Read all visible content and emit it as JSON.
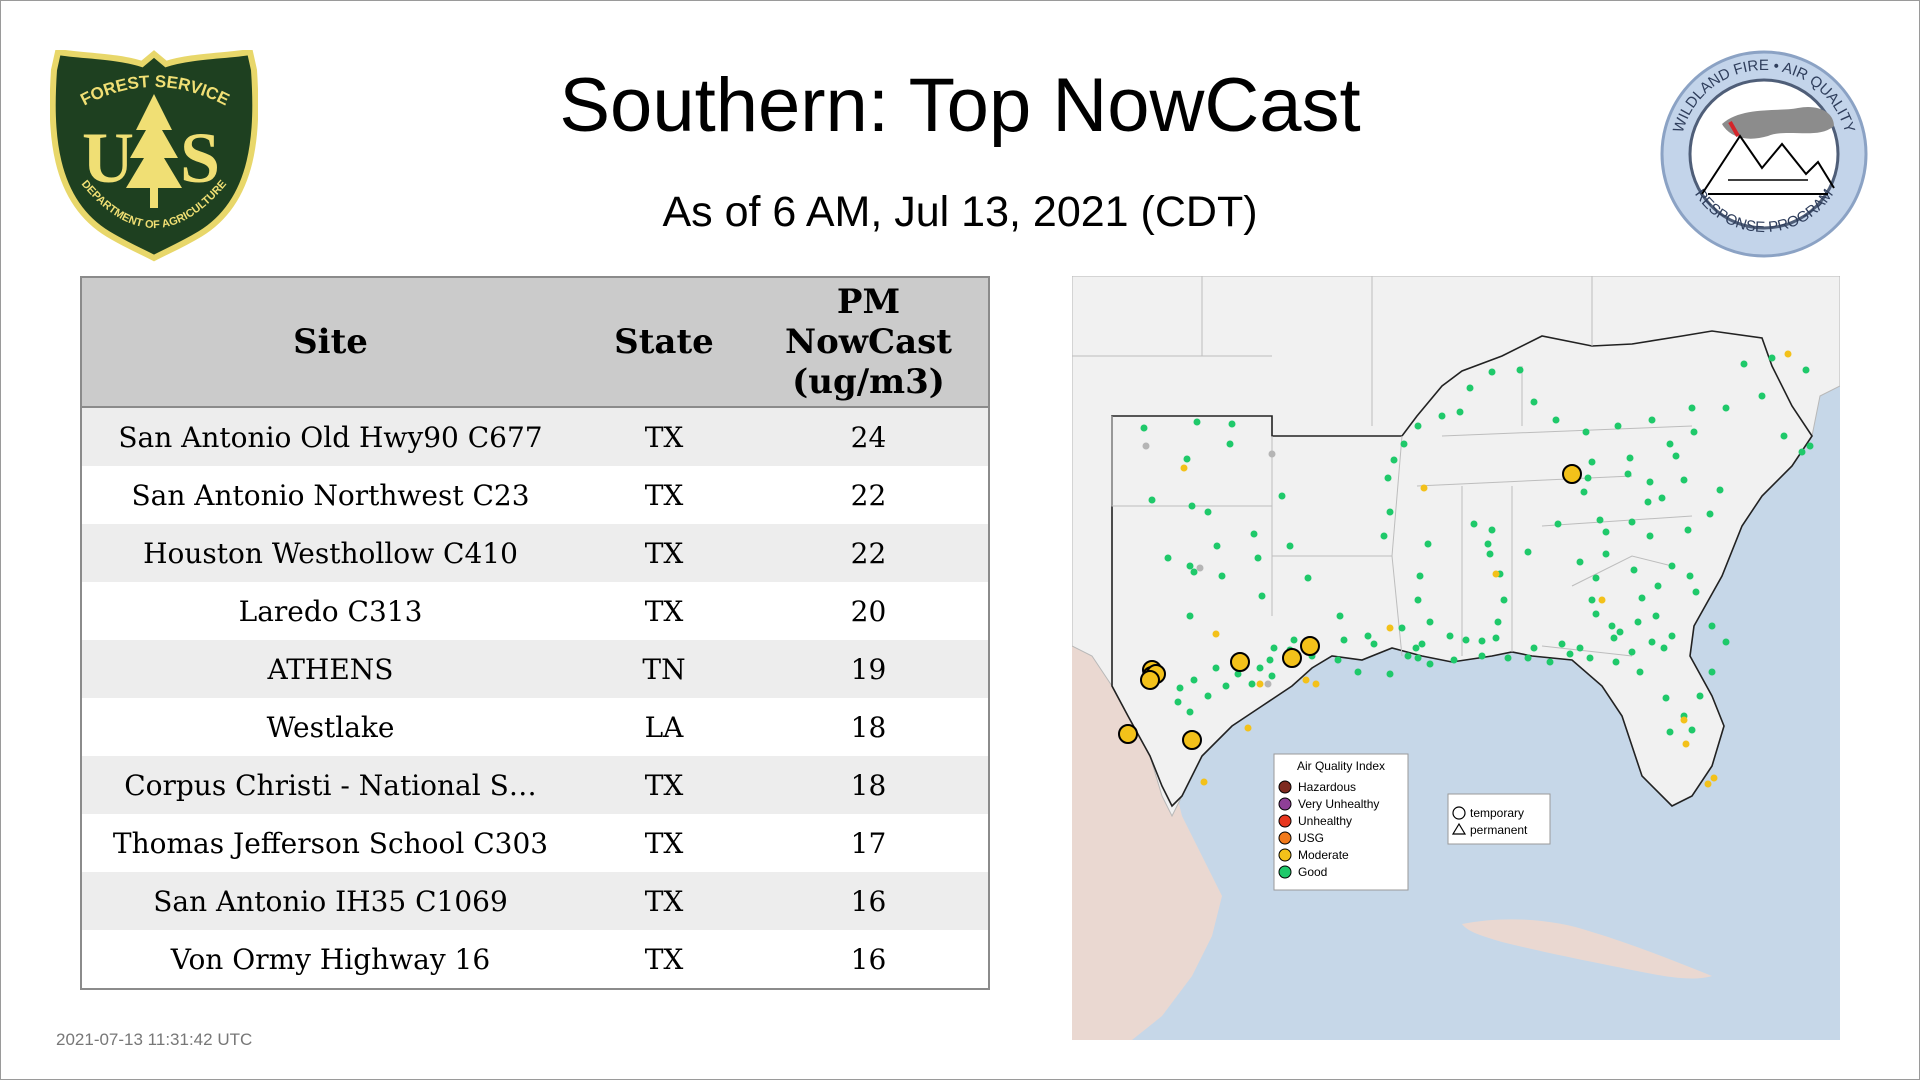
{
  "logos": {
    "left": {
      "top_text": "FOREST SERVICE",
      "mark": "US",
      "bottom_text": "DEPARTMENT OF AGRICULTURE"
    },
    "right": {
      "top_text": "WILDLAND FIRE • AIR QUALITY",
      "bottom_text": "RESPONSE PROGRAM"
    }
  },
  "header": {
    "title": "Southern: Top NowCast",
    "subtitle": "As of  6 AM, Jul 13, 2021 (CDT)"
  },
  "table": {
    "headers": {
      "site": "Site",
      "state": "State",
      "pm_line1": "PM",
      "pm_line2": "NowCast",
      "pm_line3": "(ug/m3)"
    },
    "rows": [
      {
        "site": "San Antonio Old Hwy90 C677",
        "state": "TX",
        "value": "24"
      },
      {
        "site": "San Antonio Northwest C23",
        "state": "TX",
        "value": "22"
      },
      {
        "site": "Houston Westhollow C410",
        "state": "TX",
        "value": "22"
      },
      {
        "site": "Laredo C313",
        "state": "TX",
        "value": "20"
      },
      {
        "site": "ATHENS",
        "state": "TN",
        "value": "19"
      },
      {
        "site": "Westlake",
        "state": "LA",
        "value": "18"
      },
      {
        "site": "Corpus Christi - National S…",
        "state": "TX",
        "value": "18"
      },
      {
        "site": "Thomas Jefferson School C303",
        "state": "TX",
        "value": "17"
      },
      {
        "site": "San Antonio IH35 C1069",
        "state": "TX",
        "value": "16"
      },
      {
        "site": "Von Ormy Highway 16",
        "state": "TX",
        "value": "16"
      }
    ]
  },
  "map": {
    "legend_aqi": {
      "title": "Air Quality Index",
      "items": [
        {
          "label": "Hazardous",
          "color": "#7e2a1f"
        },
        {
          "label": "Very Unhealthy",
          "color": "#8f3f97"
        },
        {
          "label": "Unhealthy",
          "color": "#e8361e"
        },
        {
          "label": "USG",
          "color": "#f27a1b"
        },
        {
          "label": "Moderate",
          "color": "#f3c11a"
        },
        {
          "label": "Good",
          "color": "#1fc96a"
        }
      ]
    },
    "legend_type": {
      "temporary": "temporary",
      "permanent": "permanent"
    },
    "colors": {
      "water": "#c6d7e8",
      "land_us": "#f1f1f1",
      "land_other": "#ead8d1",
      "good": "#1fc96a",
      "moderate": "#f3c11a",
      "unknown": "#b5b5b5"
    }
  },
  "timestamp": "2021-07-13 11:31:42 UTC"
}
